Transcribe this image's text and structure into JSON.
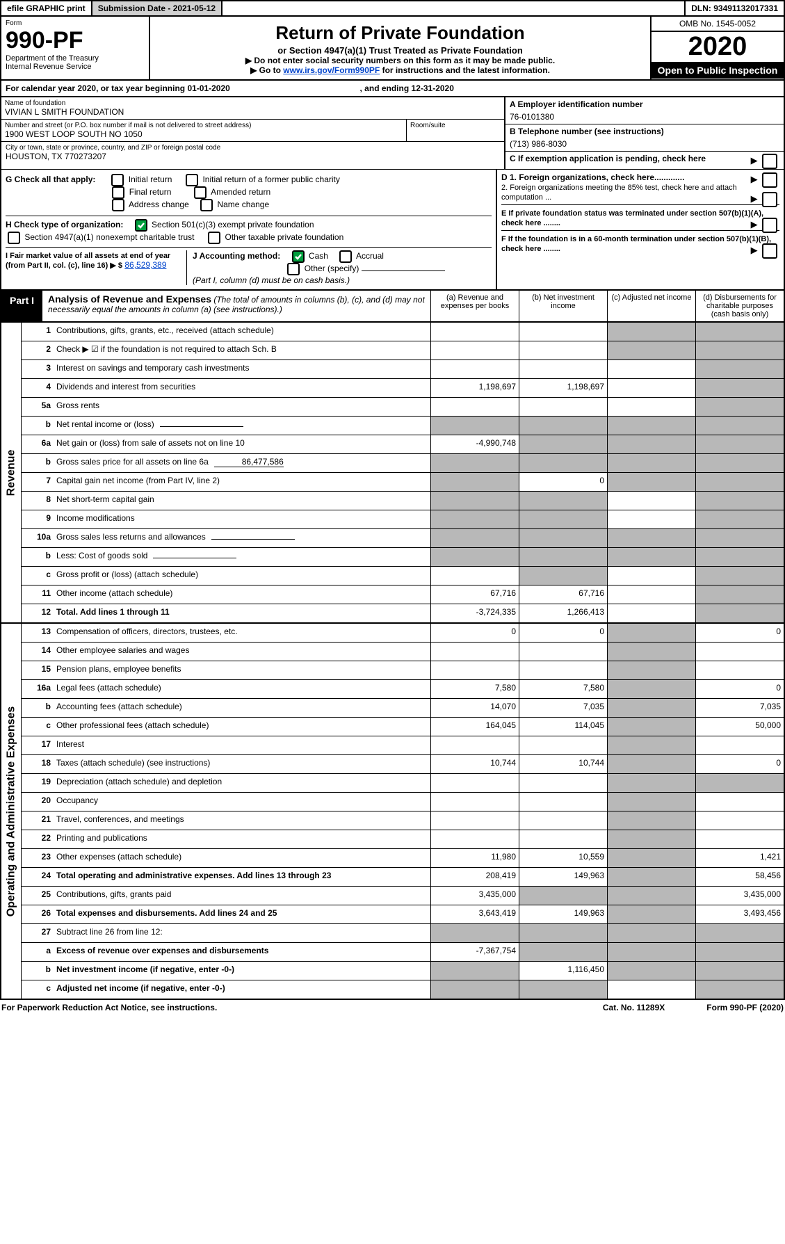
{
  "top": {
    "efile": "efile GRAPHIC print",
    "subdate_label": "Submission Date - 2021-05-12",
    "dln": "DLN: 93491132017331"
  },
  "header": {
    "form_label": "Form",
    "form_no": "990-PF",
    "dept": "Department of the Treasury",
    "irs": "Internal Revenue Service",
    "title": "Return of Private Foundation",
    "subtitle": "or Section 4947(a)(1) Trust Treated as Private Foundation",
    "note1": "▶ Do not enter social security numbers on this form as it may be made public.",
    "note2_pre": "▶ Go to ",
    "note2_link": "www.irs.gov/Form990PF",
    "note2_post": " for instructions and the latest information.",
    "omb": "OMB No. 1545-0052",
    "year": "2020",
    "open": "Open to Public Inspection"
  },
  "cal": {
    "text": "For calendar year 2020, or tax year beginning 01-01-2020",
    "ending": ", and ending 12-31-2020"
  },
  "id": {
    "name_label": "Name of foundation",
    "name": "VIVIAN L SMITH FOUNDATION",
    "addr_label": "Number and street (or P.O. box number if mail is not delivered to street address)",
    "addr": "1900 WEST LOOP SOUTH NO 1050",
    "room_label": "Room/suite",
    "city_label": "City or town, state or province, country, and ZIP or foreign postal code",
    "city": "HOUSTON, TX  770273207",
    "ein_label": "A Employer identification number",
    "ein": "76-0101380",
    "tel_label": "B Telephone number (see instructions)",
    "tel": "(713) 986-8030",
    "c_label": "C If exemption application is pending, check here"
  },
  "checks": {
    "g_label": "G Check all that apply:",
    "g1": "Initial return",
    "g2": "Initial return of a former public charity",
    "g3": "Final return",
    "g4": "Amended return",
    "g5": "Address change",
    "g6": "Name change",
    "h_label": "H Check type of organization:",
    "h1": "Section 501(c)(3) exempt private foundation",
    "h2": "Section 4947(a)(1) nonexempt charitable trust",
    "h3": "Other taxable private foundation",
    "i_label": "I Fair market value of all assets at end of year (from Part II, col. (c), line 16) ▶ $",
    "i_val": "86,529,389",
    "j_label": "J Accounting method:",
    "j1": "Cash",
    "j2": "Accrual",
    "j3": "Other (specify)",
    "j_note": "(Part I, column (d) must be on cash basis.)",
    "d1": "D 1. Foreign organizations, check here.............",
    "d2": "2. Foreign organizations meeting the 85% test, check here and attach computation ...",
    "e": "E  If private foundation status was terminated under section 507(b)(1)(A), check here ........",
    "f": "F  If the foundation is in a 60-month termination under section 507(b)(1)(B), check here ........"
  },
  "part1": {
    "tab": "Part I",
    "title": "Analysis of Revenue and Expenses",
    "title_note": "(The total of amounts in columns (b), (c), and (d) may not necessarily equal the amounts in column (a) (see instructions).)",
    "col_a": "(a)   Revenue and expenses per books",
    "col_b": "(b)  Net investment income",
    "col_c": "(c)  Adjusted net income",
    "col_d": "(d)  Disbursements for charitable purposes (cash basis only)"
  },
  "sideR": "Revenue",
  "sideE": "Operating and Administrative Expenses",
  "rows": [
    {
      "n": "1",
      "d": "Contributions, gifts, grants, etc., received (attach schedule)",
      "a": "",
      "b": "",
      "c": "S",
      "dd": "S"
    },
    {
      "n": "2",
      "d": "Check ▶ ☑ if the foundation is not required to attach Sch. B",
      "dotsRow": true,
      "a": "",
      "b": "",
      "c": "S",
      "dd": "S"
    },
    {
      "n": "3",
      "d": "Interest on savings and temporary cash investments",
      "a": "",
      "b": "",
      "c": "",
      "dd": "S"
    },
    {
      "n": "4",
      "d": "Dividends and interest from securities",
      "a": "1,198,697",
      "b": "1,198,697",
      "c": "",
      "dd": "S"
    },
    {
      "n": "5a",
      "d": "Gross rents",
      "a": "",
      "b": "",
      "c": "",
      "dd": "S"
    },
    {
      "n": "b",
      "d": "Net rental income or (loss)",
      "inline": true,
      "a": "S",
      "b": "S",
      "c": "S",
      "dd": "S"
    },
    {
      "n": "6a",
      "d": "Net gain or (loss) from sale of assets not on line 10",
      "a": "-4,990,748",
      "b": "S",
      "c": "S",
      "dd": "S"
    },
    {
      "n": "b",
      "d": "Gross sales price for all assets on line 6a",
      "inlineVal": "86,477,586",
      "a": "S",
      "b": "S",
      "c": "S",
      "dd": "S"
    },
    {
      "n": "7",
      "d": "Capital gain net income (from Part IV, line 2)",
      "a": "S",
      "b": "0",
      "c": "S",
      "dd": "S"
    },
    {
      "n": "8",
      "d": "Net short-term capital gain",
      "a": "S",
      "b": "S",
      "c": "",
      "dd": "S"
    },
    {
      "n": "9",
      "d": "Income modifications",
      "a": "S",
      "b": "S",
      "c": "",
      "dd": "S"
    },
    {
      "n": "10a",
      "d": "Gross sales less returns and allowances",
      "inline": true,
      "a": "S",
      "b": "S",
      "c": "S",
      "dd": "S"
    },
    {
      "n": "b",
      "d": "Less: Cost of goods sold",
      "inline": true,
      "a": "S",
      "b": "S",
      "c": "S",
      "dd": "S"
    },
    {
      "n": "c",
      "d": "Gross profit or (loss) (attach schedule)",
      "a": "",
      "b": "S",
      "c": "",
      "dd": "S"
    },
    {
      "n": "11",
      "d": "Other income (attach schedule)",
      "a": "67,716",
      "b": "67,716",
      "c": "",
      "dd": "S"
    },
    {
      "n": "12",
      "d": "Total. Add lines 1 through 11",
      "bold": true,
      "a": "-3,724,335",
      "b": "1,266,413",
      "c": "",
      "dd": "S"
    }
  ],
  "erows": [
    {
      "n": "13",
      "d": "Compensation of officers, directors, trustees, etc.",
      "a": "0",
      "b": "0",
      "c": "S",
      "dd": "0"
    },
    {
      "n": "14",
      "d": "Other employee salaries and wages",
      "a": "",
      "b": "",
      "c": "S",
      "dd": ""
    },
    {
      "n": "15",
      "d": "Pension plans, employee benefits",
      "a": "",
      "b": "",
      "c": "S",
      "dd": ""
    },
    {
      "n": "16a",
      "d": "Legal fees (attach schedule)",
      "a": "7,580",
      "b": "7,580",
      "c": "S",
      "dd": "0"
    },
    {
      "n": "b",
      "d": "Accounting fees (attach schedule)",
      "a": "14,070",
      "b": "7,035",
      "c": "S",
      "dd": "7,035"
    },
    {
      "n": "c",
      "d": "Other professional fees (attach schedule)",
      "a": "164,045",
      "b": "114,045",
      "c": "S",
      "dd": "50,000"
    },
    {
      "n": "17",
      "d": "Interest",
      "a": "",
      "b": "",
      "c": "S",
      "dd": ""
    },
    {
      "n": "18",
      "d": "Taxes (attach schedule) (see instructions)",
      "a": "10,744",
      "b": "10,744",
      "c": "S",
      "dd": "0"
    },
    {
      "n": "19",
      "d": "Depreciation (attach schedule) and depletion",
      "a": "",
      "b": "",
      "c": "S",
      "dd": "S"
    },
    {
      "n": "20",
      "d": "Occupancy",
      "a": "",
      "b": "",
      "c": "S",
      "dd": ""
    },
    {
      "n": "21",
      "d": "Travel, conferences, and meetings",
      "a": "",
      "b": "",
      "c": "S",
      "dd": ""
    },
    {
      "n": "22",
      "d": "Printing and publications",
      "a": "",
      "b": "",
      "c": "S",
      "dd": ""
    },
    {
      "n": "23",
      "d": "Other expenses (attach schedule)",
      "a": "11,980",
      "b": "10,559",
      "c": "S",
      "dd": "1,421"
    },
    {
      "n": "24",
      "d": "Total operating and administrative expenses. Add lines 13 through 23",
      "bold": true,
      "a": "208,419",
      "b": "149,963",
      "c": "S",
      "dd": "58,456"
    },
    {
      "n": "25",
      "d": "Contributions, gifts, grants paid",
      "a": "3,435,000",
      "b": "S",
      "c": "S",
      "dd": "3,435,000"
    },
    {
      "n": "26",
      "d": "Total expenses and disbursements. Add lines 24 and 25",
      "bold": true,
      "a": "3,643,419",
      "b": "149,963",
      "c": "S",
      "dd": "3,493,456"
    },
    {
      "n": "27",
      "d": "Subtract line 26 from line 12:",
      "a": "S",
      "b": "S",
      "c": "S",
      "dd": "S"
    },
    {
      "n": "a",
      "d": "Excess of revenue over expenses and disbursements",
      "bold": true,
      "a": "-7,367,754",
      "b": "S",
      "c": "S",
      "dd": "S"
    },
    {
      "n": "b",
      "d": "Net investment income (if negative, enter -0-)",
      "bold": true,
      "a": "S",
      "b": "1,116,450",
      "c": "S",
      "dd": "S"
    },
    {
      "n": "c",
      "d": "Adjusted net income (if negative, enter -0-)",
      "bold": true,
      "a": "S",
      "b": "S",
      "c": "",
      "dd": "S"
    }
  ],
  "footer": {
    "left": "For Paperwork Reduction Act Notice, see instructions.",
    "mid": "Cat. No. 11289X",
    "right": "Form 990-PF (2020)"
  },
  "colors": {
    "shade": "#b8b8b8",
    "link": "#0044cc",
    "checkgreen": "#009e3d"
  }
}
